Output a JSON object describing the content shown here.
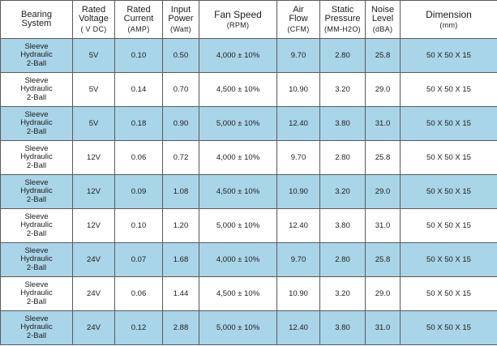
{
  "headers": [
    {
      "name": "Bearing System",
      "l1": "Bearing",
      "l2": "System",
      "unit": ""
    },
    {
      "name": "Rated Voltage",
      "l1": "Rated",
      "l2": "Voltage",
      "unit": "( V DC)"
    },
    {
      "name": "Rated Current",
      "l1": "Rated",
      "l2": "Current",
      "unit": "(AMP)"
    },
    {
      "name": "Input Power",
      "l1": "Input",
      "l2": "Power",
      "unit": "(Watt)"
    },
    {
      "name": "Fan Speed",
      "l1": "Fan Speed",
      "l2": "",
      "unit": "(RPM)"
    },
    {
      "name": "Air Flow",
      "l1": "Air",
      "l2": "Flow",
      "unit": "(CFM)"
    },
    {
      "name": "Static Pressure",
      "l1": "Static",
      "l2": "Pressure",
      "unit": "(MM-H2O)"
    },
    {
      "name": "Noise Level",
      "l1": "Noise",
      "l2": "Level",
      "unit": "(dBA)"
    },
    {
      "name": "Dimension",
      "l1": "Dimension",
      "l2": "",
      "unit": "(mm)"
    }
  ],
  "rows": [
    {
      "bearing": [
        "Sleeve",
        "Hydraulic",
        "2-Ball"
      ],
      "voltage": "5V",
      "current": "0.10",
      "power": "0.50",
      "speed": "4,000 ± 10%",
      "airflow": "9.70",
      "pressure": "2.80",
      "noise": "25.8",
      "dimension": "50 X 50 X 15"
    },
    {
      "bearing": [
        "Sleeve",
        "Hydraulic",
        "2-Ball"
      ],
      "voltage": "5V",
      "current": "0.14",
      "power": "0.70",
      "speed": "4,500 ± 10%",
      "airflow": "10.90",
      "pressure": "3.20",
      "noise": "29.0",
      "dimension": "50 X 50 X 15"
    },
    {
      "bearing": [
        "Sleeve",
        "Hydraulic",
        "2-Ball"
      ],
      "voltage": "5V",
      "current": "0.18",
      "power": "0.90",
      "speed": "5,000 ± 10%",
      "airflow": "12.40",
      "pressure": "3.80",
      "noise": "31.0",
      "dimension": "50 X 50 X 15"
    },
    {
      "bearing": [
        "Sleeve",
        "Hydraulic",
        "2-Ball"
      ],
      "voltage": "12V",
      "current": "0.06",
      "power": "0.72",
      "speed": "4,000 ± 10%",
      "airflow": "9.70",
      "pressure": "2.80",
      "noise": "25.8",
      "dimension": "50 X 50 X 15"
    },
    {
      "bearing": [
        "Sleeve",
        "Hydraulic",
        "2-Ball"
      ],
      "voltage": "12V",
      "current": "0.09",
      "power": "1.08",
      "speed": "4,500 ± 10%",
      "airflow": "10.90",
      "pressure": "3.20",
      "noise": "29.0",
      "dimension": "50 X 50 X 15"
    },
    {
      "bearing": [
        "Sleeve",
        "Hydraulic",
        "2-Ball"
      ],
      "voltage": "12V",
      "current": "0.10",
      "power": "1.20",
      "speed": "5,000 ± 10%",
      "airflow": "12.40",
      "pressure": "3.80",
      "noise": "31.0",
      "dimension": "50 X 50 X 15"
    },
    {
      "bearing": [
        "Sleeve",
        "Hydraulic",
        "2-Ball"
      ],
      "voltage": "24V",
      "current": "0.07",
      "power": "1.68",
      "speed": "4,000 ± 10%",
      "airflow": "9.70",
      "pressure": "2.80",
      "noise": "25.8",
      "dimension": "50 X 50 X 15"
    },
    {
      "bearing": [
        "Sleeve",
        "Hydraulic",
        "2-Ball"
      ],
      "voltage": "24V",
      "current": "0.06",
      "power": "1.44",
      "speed": "4,500 ± 10%",
      "airflow": "10.90",
      "pressure": "3.20",
      "noise": "29.0",
      "dimension": "50 X 50 X 15"
    },
    {
      "bearing": [
        "Sleeve",
        "Hydraulic",
        "2-Ball"
      ],
      "voltage": "24V",
      "current": "0.12",
      "power": "2.88",
      "speed": "5,000 ± 10%",
      "airflow": "12.40",
      "pressure": "3.80",
      "noise": "31.0",
      "dimension": "50 X 50 X 15"
    }
  ],
  "colors": {
    "shaded_row": "#a9d5e8",
    "plain_row": "#ffffff",
    "border": "#5a5a5a"
  }
}
